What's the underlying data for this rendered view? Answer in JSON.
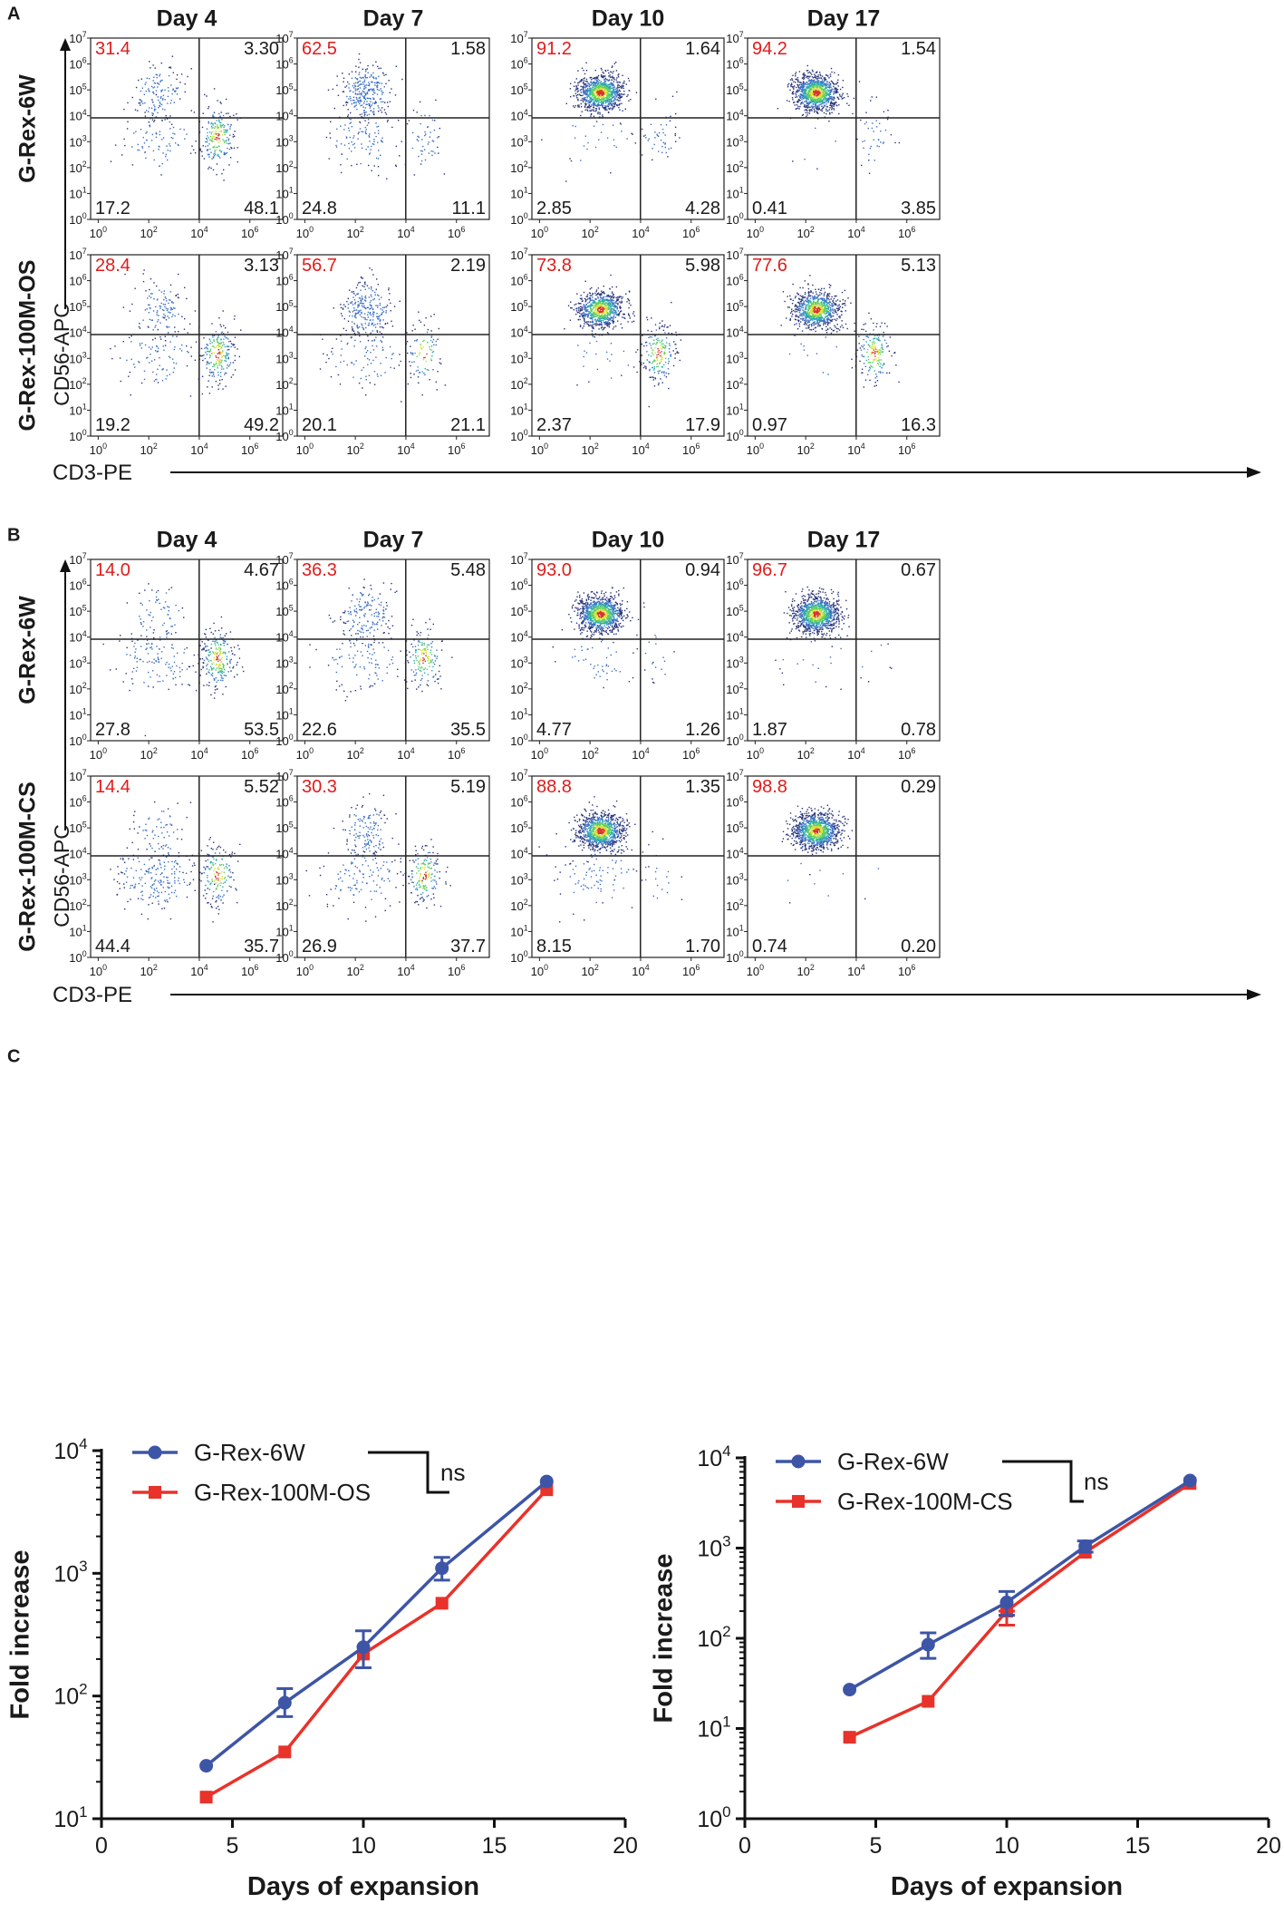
{
  "figure": {
    "panel_labels": [
      "A",
      "B",
      "C"
    ],
    "colors": {
      "red_text": "#e21b1b",
      "series_blue": "#3d55a6",
      "series_red": "#e8322a",
      "density": [
        "#27337a",
        "#3b6fc4",
        "#2ea8b0",
        "#5fcf5f",
        "#d8e23a",
        "#e8922a",
        "#d9342a"
      ]
    }
  },
  "flow_panels": [
    {
      "panel": "A",
      "x_axis_label": "CD3-PE",
      "y_axis_label": "CD56-APC",
      "days": [
        "Day 4",
        "Day 7",
        "Day 10",
        "Day 17"
      ],
      "rows": [
        {
          "condition": "G-Rex-6W",
          "quadrants": [
            {
              "ul": "31.4",
              "ur": "3.30",
              "ll": "17.2",
              "lr": "48.1"
            },
            {
              "ul": "62.5",
              "ur": "1.58",
              "ll": "24.8",
              "lr": "11.1"
            },
            {
              "ul": "91.2",
              "ur": "1.64",
              "ll": "2.85",
              "lr": "4.28"
            },
            {
              "ul": "94.2",
              "ur": "1.54",
              "ll": "0.41",
              "lr": "3.85"
            }
          ]
        },
        {
          "condition": "G-Rex-100M-OS",
          "quadrants": [
            {
              "ul": "28.4",
              "ur": "3.13",
              "ll": "19.2",
              "lr": "49.2"
            },
            {
              "ul": "56.7",
              "ur": "2.19",
              "ll": "20.1",
              "lr": "21.1"
            },
            {
              "ul": "73.8",
              "ur": "5.98",
              "ll": "2.37",
              "lr": "17.9"
            },
            {
              "ul": "77.6",
              "ur": "5.13",
              "ll": "0.97",
              "lr": "16.3"
            }
          ]
        }
      ]
    },
    {
      "panel": "B",
      "x_axis_label": "CD3-PE",
      "y_axis_label": "CD56-APC",
      "days": [
        "Day 4",
        "Day 7",
        "Day 10",
        "Day 17"
      ],
      "rows": [
        {
          "condition": "G-Rex-6W",
          "quadrants": [
            {
              "ul": "14.0",
              "ur": "4.67",
              "ll": "27.8",
              "lr": "53.5"
            },
            {
              "ul": "36.3",
              "ur": "5.48",
              "ll": "22.6",
              "lr": "35.5"
            },
            {
              "ul": "93.0",
              "ur": "0.94",
              "ll": "4.77",
              "lr": "1.26"
            },
            {
              "ul": "96.7",
              "ur": "0.67",
              "ll": "1.87",
              "lr": "0.78"
            }
          ]
        },
        {
          "condition": "G-Rex-100M-CS",
          "quadrants": [
            {
              "ul": "14.4",
              "ur": "5.52",
              "ll": "44.4",
              "lr": "35.7"
            },
            {
              "ul": "30.3",
              "ur": "5.19",
              "ll": "26.9",
              "lr": "37.7"
            },
            {
              "ul": "88.8",
              "ur": "1.35",
              "ll": "8.15",
              "lr": "1.70"
            },
            {
              "ul": "98.8",
              "ur": "0.29",
              "ll": "0.74",
              "lr": "0.20"
            }
          ]
        }
      ]
    }
  ],
  "chart_data": [
    {
      "type": "line",
      "title": "",
      "xlabel": "Days of expansion",
      "ylabel": "Fold increase",
      "xscale": "linear",
      "yscale": "log",
      "xlim": [
        0,
        20
      ],
      "ylim": [
        10,
        10000
      ],
      "xticks": [
        "0",
        "5",
        "10",
        "15",
        "20"
      ],
      "yticks": [
        {
          "base": "10",
          "exp": "1",
          "v": 10
        },
        {
          "base": "10",
          "exp": "2",
          "v": 100
        },
        {
          "base": "10",
          "exp": "3",
          "v": 1000
        },
        {
          "base": "10",
          "exp": "4",
          "v": 10000
        }
      ],
      "significance": "ns",
      "legend_position": "top-left",
      "series": [
        {
          "name": "G-Rex-6W",
          "marker": "circle",
          "x": [
            4,
            7,
            10,
            13,
            17
          ],
          "y": [
            27,
            88,
            250,
            1100,
            5600
          ],
          "err_low": [
            0,
            68,
            170,
            880,
            0
          ],
          "err_high": [
            0,
            115,
            340,
            1350,
            0
          ]
        },
        {
          "name": "G-Rex-100M-OS",
          "marker": "square",
          "x": [
            4,
            7,
            10,
            13,
            17
          ],
          "y": [
            15,
            35,
            220,
            570,
            4800
          ],
          "err_low": [
            0,
            0,
            0,
            0,
            0
          ],
          "err_high": [
            0,
            0,
            0,
            0,
            0
          ]
        }
      ]
    },
    {
      "type": "line",
      "title": "",
      "xlabel": "Days of expansion",
      "ylabel": "Fold increase",
      "xscale": "linear",
      "yscale": "log",
      "xlim": [
        0,
        20
      ],
      "ylim": [
        1,
        10000
      ],
      "xticks": [
        "0",
        "5",
        "10",
        "15",
        "20"
      ],
      "yticks": [
        {
          "base": "10",
          "exp": "0",
          "v": 1
        },
        {
          "base": "10",
          "exp": "1",
          "v": 10
        },
        {
          "base": "10",
          "exp": "2",
          "v": 100
        },
        {
          "base": "10",
          "exp": "3",
          "v": 1000
        },
        {
          "base": "10",
          "exp": "4",
          "v": 10000
        }
      ],
      "significance": "ns",
      "legend_position": "top-left",
      "series": [
        {
          "name": "G-Rex-6W",
          "marker": "circle",
          "x": [
            4,
            7,
            10,
            13,
            17
          ],
          "y": [
            27,
            85,
            250,
            1050,
            5600
          ],
          "err_low": [
            0,
            60,
            180,
            900,
            0
          ],
          "err_high": [
            0,
            115,
            330,
            1200,
            0
          ]
        },
        {
          "name": "G-Rex-100M-CS",
          "marker": "square",
          "x": [
            4,
            7,
            10,
            13,
            17
          ],
          "y": [
            8,
            20,
            200,
            900,
            5200
          ],
          "err_low": [
            0,
            0,
            140,
            0,
            0
          ],
          "err_high": [
            0,
            0,
            0,
            0,
            0
          ]
        }
      ]
    }
  ]
}
